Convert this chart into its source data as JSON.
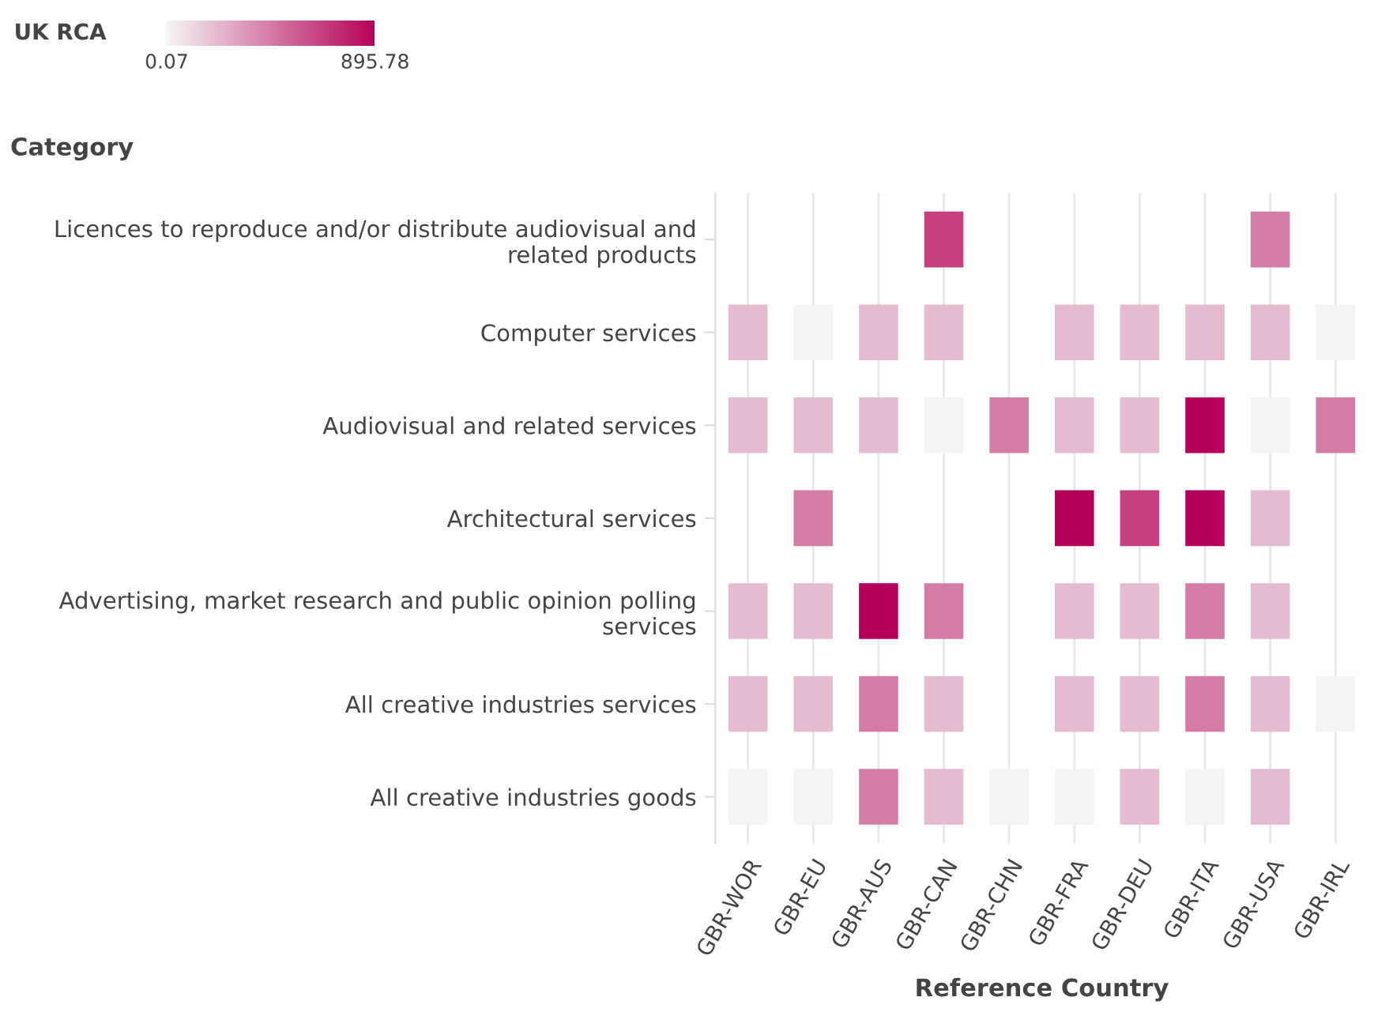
{
  "chart_data": {
    "type": "heatmap",
    "xlabel": "Reference Country",
    "ylabel": "Category",
    "clabel": "UK RCA",
    "categories": [
      "GBR-WOR",
      "GBR-EU",
      "GBR-AUS",
      "GBR-CAN",
      "GBR-CHN",
      "GBR-FRA",
      "GBR-DEU",
      "GBR-ITA",
      "GBR-USA",
      "GBR-IRL"
    ],
    "y_categories": [
      "Licences to reproduce and/or distribute audiovisual and related products",
      "Computer services",
      "Audiovisual and related services",
      "Architectural services",
      "Advertising, market research and public opinion polling services",
      "All creative industries services",
      "All creative industries goods"
    ],
    "cells": [
      [
        null,
        null,
        null,
        670,
        null,
        null,
        null,
        null,
        450,
        null
      ],
      [
        220,
        10,
        220,
        220,
        null,
        220,
        220,
        220,
        220,
        10
      ],
      [
        220,
        220,
        220,
        10,
        450,
        220,
        220,
        890,
        10,
        450
      ],
      [
        null,
        450,
        null,
        null,
        null,
        895.78,
        670,
        890,
        220,
        null
      ],
      [
        220,
        220,
        890,
        450,
        null,
        220,
        220,
        450,
        220,
        null
      ],
      [
        220,
        220,
        450,
        220,
        null,
        220,
        220,
        450,
        220,
        10
      ],
      [
        10,
        10,
        450,
        220,
        10,
        10,
        220,
        10,
        220,
        null
      ]
    ],
    "colors": [
      "#f5f5f5",
      "#e6b8d0",
      "#d47ba6",
      "#c63f7f",
      "#b5005a"
    ],
    "clim": [
      0.07,
      895.78
    ],
    "cticks": [
      0.07,
      895.78
    ],
    "grid": "x"
  }
}
